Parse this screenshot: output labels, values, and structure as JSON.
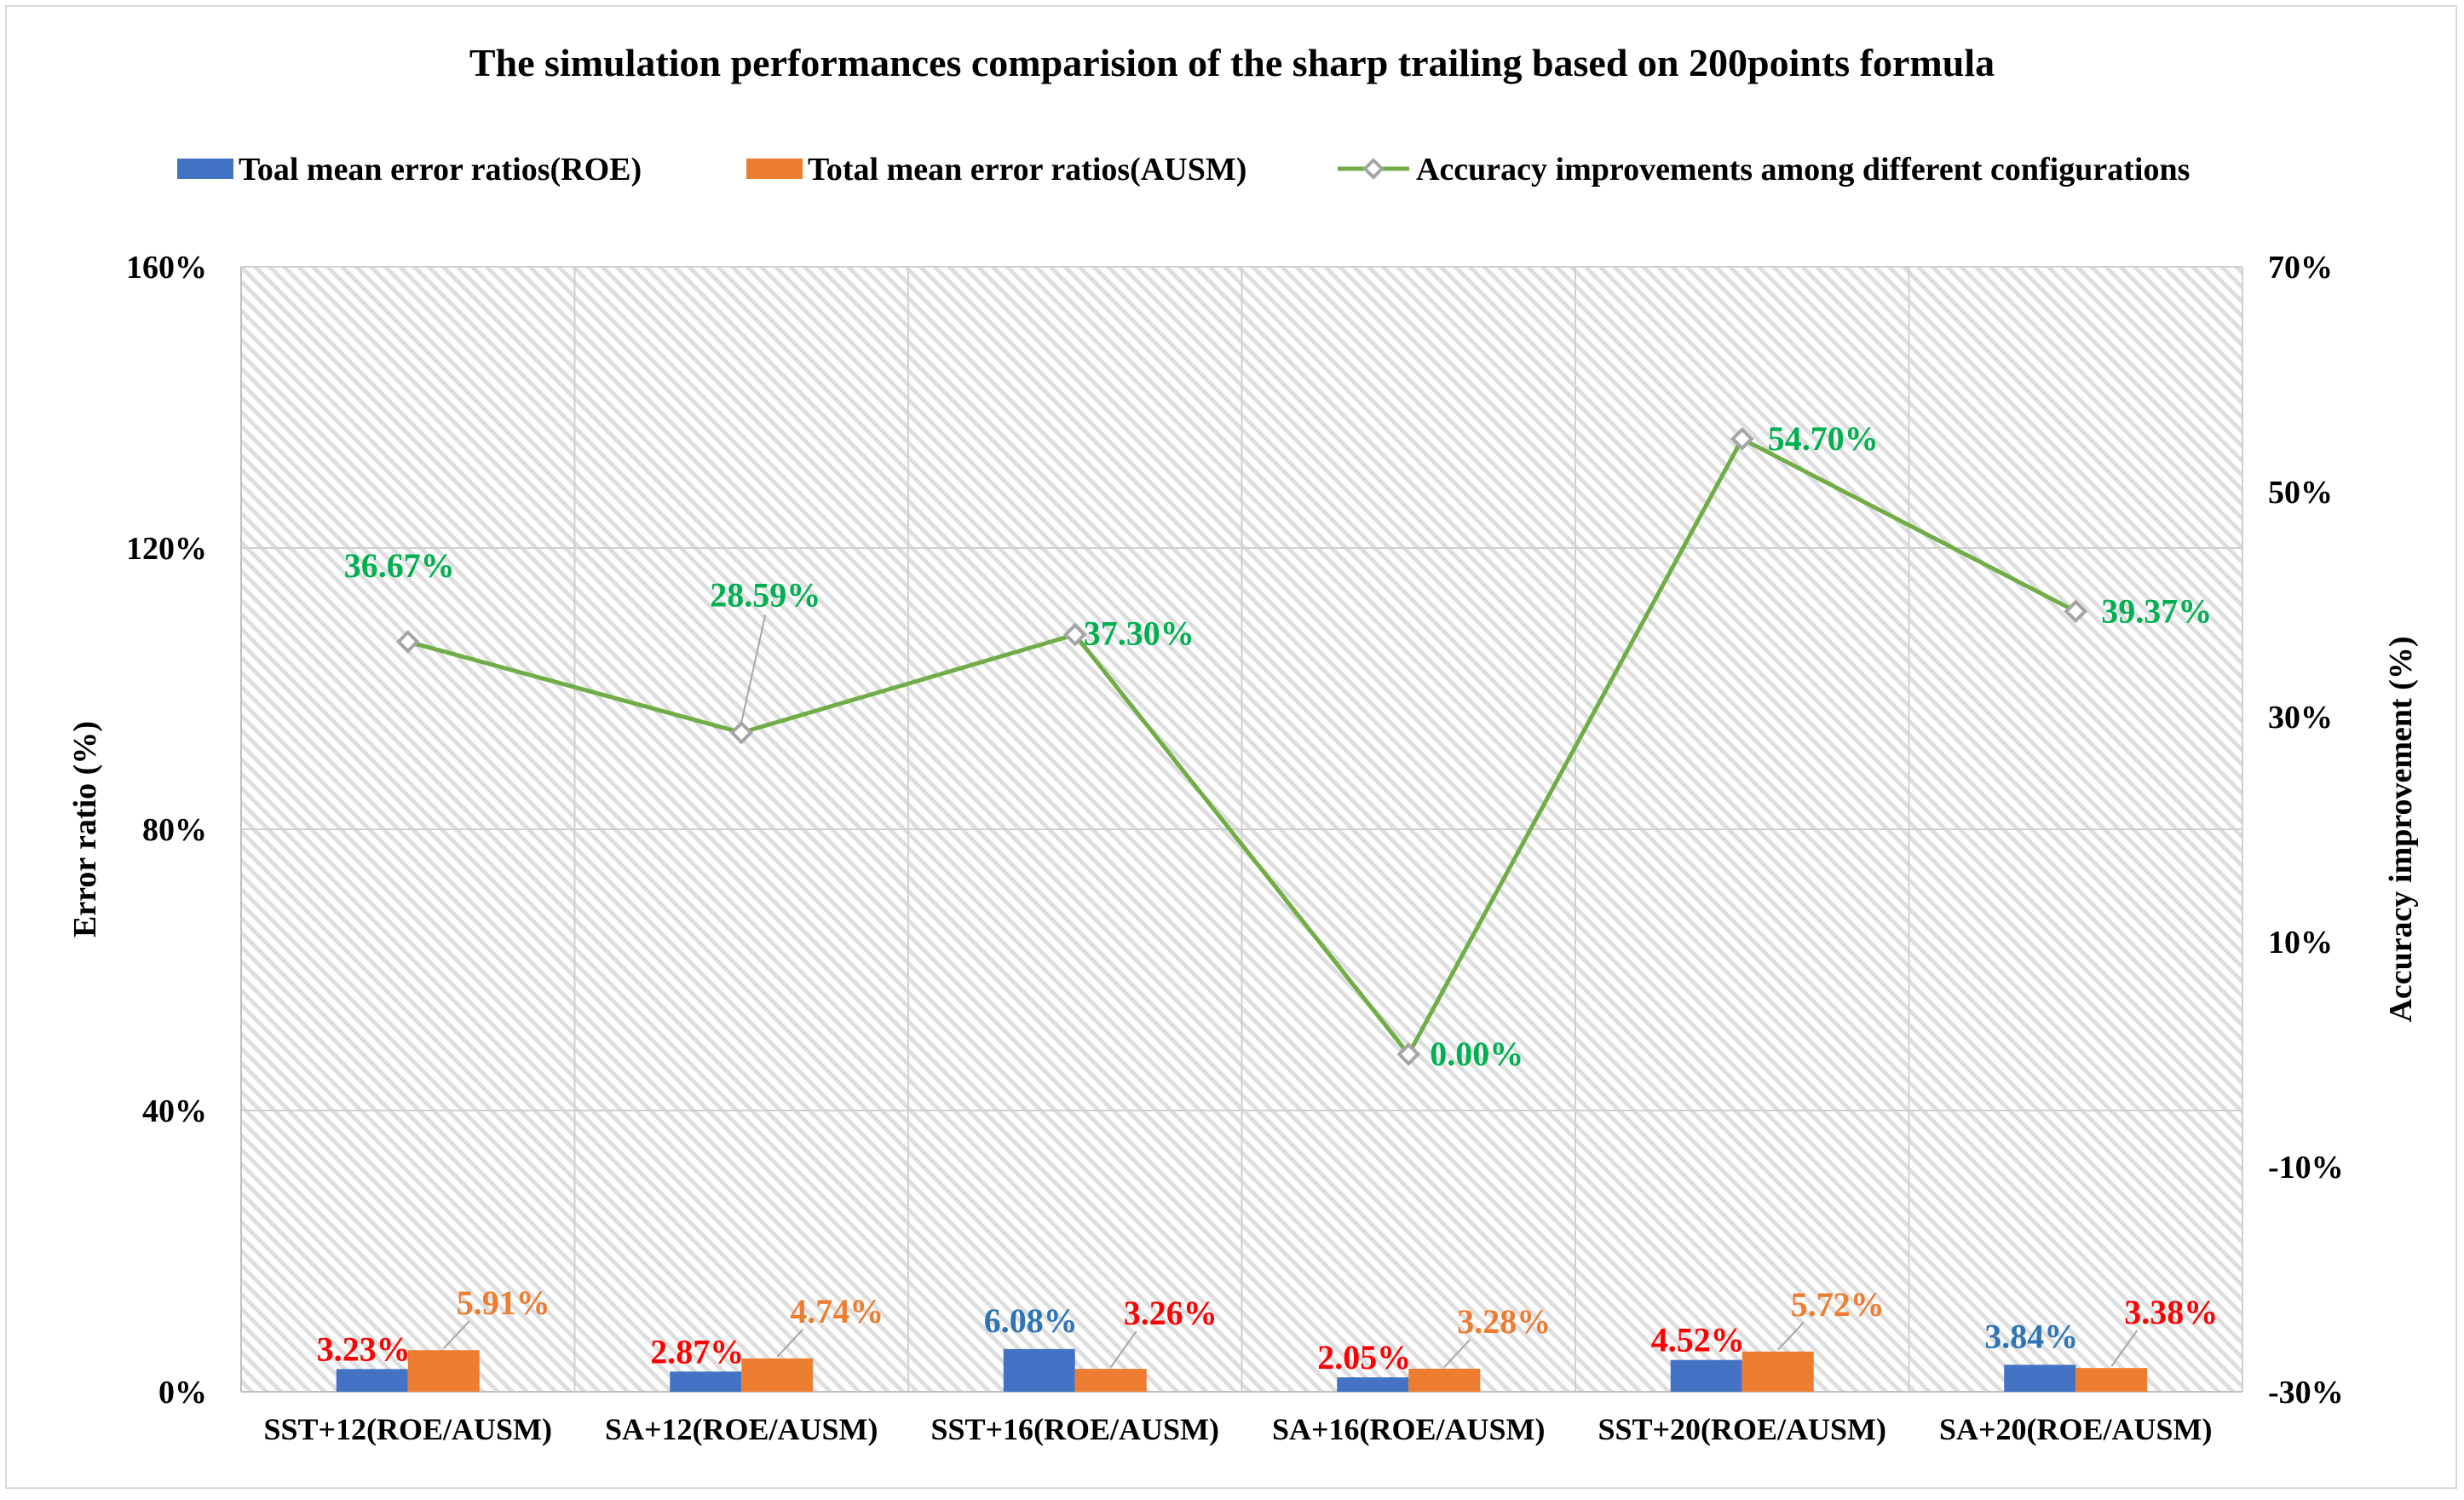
{
  "chart_data": {
    "type": "bar",
    "title": "The simulation performances comparision of the sharp trailing based on 200points formula",
    "categories": [
      "SST+12(ROE/AUSM)",
      "SA+12(ROE/AUSM)",
      "SST+16(ROE/AUSM)",
      "SA+16(ROE/AUSM)",
      "SST+20(ROE/AUSM)",
      "SA+20(ROE/AUSM)"
    ],
    "ylabel": "Error ratio (%)",
    "y2label": "Accuracy improvement (%)",
    "ylim": [
      0,
      160
    ],
    "y2lim": [
      -30,
      70
    ],
    "yticks": [
      "0%",
      "40%",
      "80%",
      "120%",
      "160%"
    ],
    "y2ticks": [
      "-30%",
      "-10%",
      "10%",
      "30%",
      "50%",
      "70%"
    ],
    "grid": true,
    "legend_position": "top",
    "series": [
      {
        "name": "Toal mean error ratios(ROE)",
        "kind": "bar",
        "axis": "left",
        "color": "#4472c4",
        "values": [
          3.23,
          2.87,
          6.08,
          2.05,
          4.52,
          3.84
        ],
        "labels": [
          "3.23%",
          "2.87%",
          "6.08%",
          "2.05%",
          "4.52%",
          "3.84%"
        ],
        "label_colors": [
          "#ff0000",
          "#ff0000",
          "#2e75b6",
          "#ff0000",
          "#ff0000",
          "#2e75b6"
        ]
      },
      {
        "name": "Total mean error ratios(AUSM)",
        "kind": "bar",
        "axis": "left",
        "color": "#ed7d31",
        "values": [
          5.91,
          4.74,
          3.26,
          3.28,
          5.72,
          3.38
        ],
        "labels": [
          "5.91%",
          "4.74%",
          "3.26%",
          "3.28%",
          "5.72%",
          "3.38%"
        ],
        "label_colors": [
          "#ed7d31",
          "#ed7d31",
          "#ff0000",
          "#ed7d31",
          "#ed7d31",
          "#ff0000"
        ]
      },
      {
        "name": "Accuracy improvements among different configurations",
        "kind": "line",
        "axis": "right",
        "color": "#70ad47",
        "marker_color": "#a5a5a5",
        "label_color": "#00b050",
        "values": [
          36.67,
          28.59,
          37.3,
          0.0,
          54.7,
          39.37
        ],
        "labels": [
          "36.67%",
          "28.59%",
          "37.30%",
          "0.00%",
          "54.70%",
          "39.37%"
        ]
      }
    ]
  }
}
